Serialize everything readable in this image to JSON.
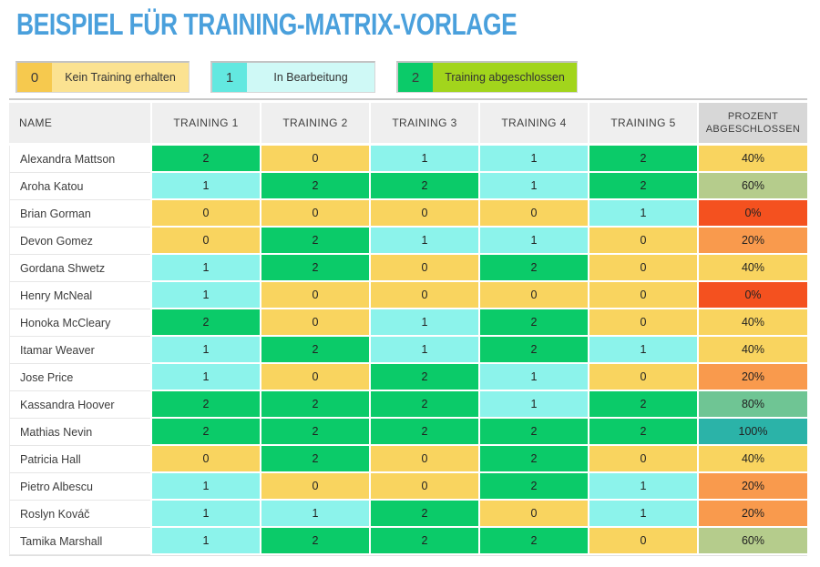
{
  "title": "BEISPIEL FÜR TRAINING-MATRIX-VORLAGE",
  "legend": [
    {
      "value": "0",
      "label": "Kein Training erhalten",
      "num_bg": "#F6C94E",
      "label_bg": "#FBE291"
    },
    {
      "value": "1",
      "label": "In Bearbeitung",
      "num_bg": "#63E8E0",
      "label_bg": "#CFF9F6"
    },
    {
      "value": "2",
      "label": "Training abgeschlossen",
      "num_bg": "#0BCB69",
      "label_bg": "#A2D51C"
    }
  ],
  "table": {
    "columns": [
      "NAME",
      "TRAINING 1",
      "TRAINING 2",
      "TRAINING 3",
      "TRAINING 4",
      "TRAINING 5",
      "PROZENT ABGESCHLOSSEN"
    ],
    "rows": [
      {
        "name": "Alexandra Mattson",
        "scores": [
          2,
          0,
          1,
          1,
          2
        ],
        "percent": "40%"
      },
      {
        "name": "Aroha Katou",
        "scores": [
          1,
          2,
          2,
          1,
          2
        ],
        "percent": "60%"
      },
      {
        "name": "Brian Gorman",
        "scores": [
          0,
          0,
          0,
          0,
          1
        ],
        "percent": "0%"
      },
      {
        "name": "Devon Gomez",
        "scores": [
          0,
          2,
          1,
          1,
          0
        ],
        "percent": "20%"
      },
      {
        "name": "Gordana Shwetz",
        "scores": [
          1,
          2,
          0,
          2,
          0
        ],
        "percent": "40%"
      },
      {
        "name": "Henry McNeal",
        "scores": [
          1,
          0,
          0,
          0,
          0
        ],
        "percent": "0%"
      },
      {
        "name": "Honoka McCleary",
        "scores": [
          2,
          0,
          1,
          2,
          0
        ],
        "percent": "40%"
      },
      {
        "name": "Itamar Weaver",
        "scores": [
          1,
          2,
          1,
          2,
          1
        ],
        "percent": "40%"
      },
      {
        "name": "Jose Price",
        "scores": [
          1,
          0,
          2,
          1,
          0
        ],
        "percent": "20%"
      },
      {
        "name": "Kassandra Hoover",
        "scores": [
          2,
          2,
          2,
          1,
          2
        ],
        "percent": "80%"
      },
      {
        "name": "Mathias Nevin",
        "scores": [
          2,
          2,
          2,
          2,
          2
        ],
        "percent": "100%"
      },
      {
        "name": "Patricia Hall",
        "scores": [
          0,
          2,
          0,
          2,
          0
        ],
        "percent": "40%"
      },
      {
        "name": "Pietro Albescu",
        "scores": [
          1,
          0,
          0,
          2,
          1
        ],
        "percent": "20%"
      },
      {
        "name": "Roslyn Kováč",
        "scores": [
          1,
          1,
          2,
          0,
          1
        ],
        "percent": "20%"
      },
      {
        "name": "Tamika Marshall",
        "scores": [
          1,
          2,
          2,
          2,
          0
        ],
        "percent": "60%"
      }
    ]
  },
  "colors": {
    "title": "#4AA0DC",
    "header_bg": "#EFEFEF",
    "percent_header_bg": "#D7D7D7",
    "score": {
      "0": "#F9D45F",
      "1": "#8CF3EB",
      "2": "#0BCB69"
    },
    "percent": {
      "0%": "#F4511F",
      "20%": "#F99A4D",
      "40%": "#F9D45F",
      "60%": "#B5CC8C",
      "80%": "#6FC594",
      "100%": "#2BB3A8"
    }
  }
}
